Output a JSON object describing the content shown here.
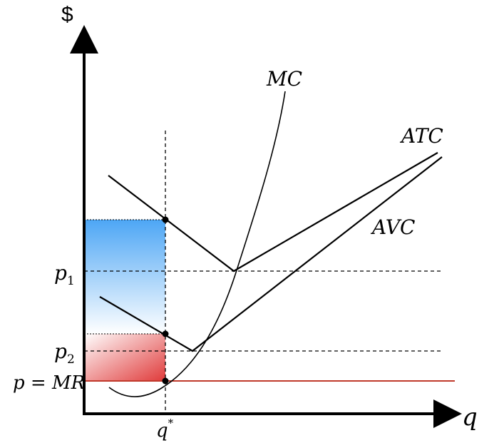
{
  "chart_data": {
    "type": "line",
    "title": "",
    "xlabel": "q",
    "ylabel": "$",
    "series": [
      {
        "name": "MC",
        "label": "MC"
      },
      {
        "name": "ATC",
        "label": "ATC"
      },
      {
        "name": "AVC",
        "label": "AVC"
      }
    ],
    "price_levels": {
      "p1": {
        "main": "p",
        "sub": "1"
      },
      "p2": {
        "main": "p",
        "sub": "2"
      },
      "pmr": {
        "label": "p = MR"
      }
    },
    "q_star": {
      "main": "q",
      "sup": "*"
    },
    "shaded_regions": [
      {
        "name": "loss-area-blue",
        "color_top": "#4da6f5",
        "color_bottom": "#ffffff"
      },
      {
        "name": "loss-area-red",
        "color_top": "#ffffff",
        "color_bottom": "#e03a3a"
      }
    ],
    "colors": {
      "mr_line": "#c0392b",
      "axis": "#000000"
    },
    "grid": false,
    "legend": "none"
  }
}
